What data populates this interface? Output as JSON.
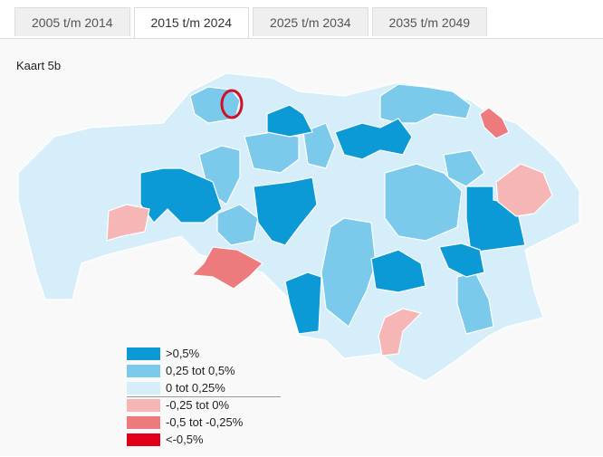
{
  "tabs": [
    "2005 t/m 2014",
    "2015 t/m 2024",
    "2025 t/m 2034",
    "2035 t/m 2049"
  ],
  "map": {
    "title": "Kaart 5b",
    "legend": [
      {
        "label": ">0,5%",
        "color": "#0b9ad6"
      },
      {
        "label": "0,25 tot 0,5%",
        "color": "#7ccaeb"
      },
      {
        "label": "0 tot 0,25%",
        "color": "#d5eef9"
      },
      {
        "label": "-0,25 tot 0%",
        "color": "#f6b6b6"
      },
      {
        "label": "-0,5 tot -0,25%",
        "color": "#ed7b7e"
      },
      {
        "label": "<-0,5%",
        "color": "#e0001a"
      }
    ]
  }
}
